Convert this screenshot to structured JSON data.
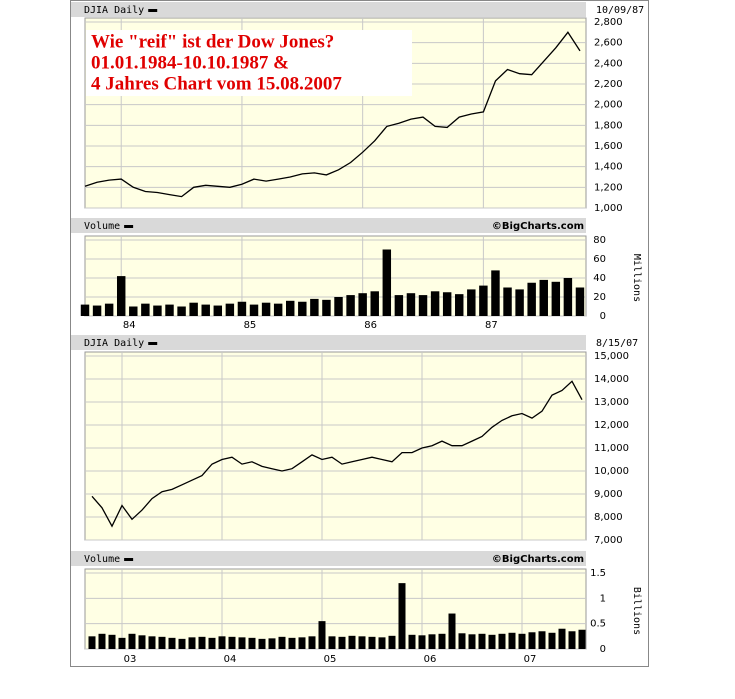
{
  "chart_data": [
    {
      "type": "line",
      "title": "DJIA Daily",
      "date_label": "10/09/87",
      "annotations": [
        "Wie \"reif\" ist der Dow Jones?",
        "01.01.1984-10.10.1987  &",
        "4 Jahres Chart vom 15.08.2007"
      ],
      "x": [
        1983.7,
        1983.8,
        1983.9,
        1984.0,
        1984.1,
        1984.2,
        1984.3,
        1984.4,
        1984.5,
        1984.6,
        1984.7,
        1984.8,
        1984.9,
        1985.0,
        1985.1,
        1985.2,
        1985.3,
        1985.4,
        1985.5,
        1985.6,
        1985.7,
        1985.8,
        1985.9,
        1986.0,
        1986.1,
        1986.2,
        1986.3,
        1986.4,
        1986.5,
        1986.6,
        1986.7,
        1986.8,
        1986.9,
        1987.0,
        1987.1,
        1987.2,
        1987.3,
        1987.4,
        1987.5,
        1987.6,
        1987.7,
        1987.8
      ],
      "values": [
        1210,
        1250,
        1270,
        1280,
        1200,
        1160,
        1150,
        1130,
        1110,
        1200,
        1220,
        1210,
        1200,
        1230,
        1280,
        1260,
        1280,
        1300,
        1330,
        1340,
        1320,
        1370,
        1440,
        1540,
        1650,
        1790,
        1820,
        1860,
        1880,
        1790,
        1780,
        1880,
        1910,
        1930,
        2230,
        2340,
        2300,
        2290,
        2420,
        2550,
        2700,
        2520
      ],
      "color": "#000000",
      "xlim": [
        1983.7,
        1987.85
      ],
      "xticks": [
        1984,
        1985,
        1986,
        1987
      ],
      "ylim": [
        1000,
        2800
      ],
      "yticks": [
        {
          "value": 1000,
          "label": "1,000"
        },
        {
          "value": 1200,
          "label": "1,200"
        },
        {
          "value": 1400,
          "label": "1,400"
        },
        {
          "value": 1600,
          "label": "1,600"
        },
        {
          "value": 1800,
          "label": "1,800"
        },
        {
          "value": 2000,
          "label": "2,000"
        },
        {
          "value": 2200,
          "label": "2,200"
        },
        {
          "value": 2400,
          "label": "2,400"
        },
        {
          "value": 2600,
          "label": "2,600"
        },
        {
          "value": 2800,
          "label": "2,800"
        }
      ],
      "grid": true
    },
    {
      "type": "bar",
      "title": "Volume",
      "source": "©BigCharts.com",
      "y_label": "Millions",
      "x": [
        1983.7,
        1983.8,
        1983.9,
        1984.0,
        1984.1,
        1984.2,
        1984.3,
        1984.4,
        1984.5,
        1984.6,
        1984.7,
        1984.8,
        1984.9,
        1985.0,
        1985.1,
        1985.2,
        1985.3,
        1985.4,
        1985.5,
        1985.6,
        1985.7,
        1985.8,
        1985.9,
        1986.0,
        1986.1,
        1986.2,
        1986.3,
        1986.4,
        1986.5,
        1986.6,
        1986.7,
        1986.8,
        1986.9,
        1987.0,
        1987.1,
        1987.2,
        1987.3,
        1987.4,
        1987.5,
        1987.6,
        1987.7,
        1987.8
      ],
      "values": [
        12,
        11,
        13,
        42,
        10,
        13,
        11,
        12,
        10,
        14,
        12,
        11,
        13,
        15,
        12,
        14,
        13,
        16,
        15,
        18,
        17,
        20,
        22,
        24,
        26,
        70,
        22,
        24,
        22,
        26,
        25,
        23,
        28,
        32,
        48,
        30,
        28,
        35,
        38,
        36,
        40,
        30
      ],
      "color": "#000000",
      "xlim": [
        1983.7,
        1987.85
      ],
      "xticks": [
        {
          "value": 1984,
          "label": "84"
        },
        {
          "value": 1985,
          "label": "85"
        },
        {
          "value": 1986,
          "label": "86"
        },
        {
          "value": 1987,
          "label": "87"
        }
      ],
      "ylim": [
        0,
        80
      ],
      "yticks": [
        0,
        20,
        40,
        60,
        80
      ],
      "grid": true
    },
    {
      "type": "line",
      "title": "DJIA Daily",
      "date_label": "8/15/07",
      "x": [
        2002.7,
        2002.8,
        2002.9,
        2003.0,
        2003.1,
        2003.2,
        2003.3,
        2003.4,
        2003.5,
        2003.6,
        2003.7,
        2003.8,
        2003.9,
        2004.0,
        2004.1,
        2004.2,
        2004.3,
        2004.4,
        2004.5,
        2004.6,
        2004.7,
        2004.8,
        2004.9,
        2005.0,
        2005.1,
        2005.2,
        2005.3,
        2005.4,
        2005.5,
        2005.6,
        2005.7,
        2005.8,
        2005.9,
        2006.0,
        2006.1,
        2006.2,
        2006.3,
        2006.4,
        2006.5,
        2006.6,
        2006.7,
        2006.8,
        2006.9,
        2007.0,
        2007.1,
        2007.2,
        2007.3,
        2007.4,
        2007.5,
        2007.6
      ],
      "values": [
        8900,
        8400,
        7600,
        8500,
        7900,
        8300,
        8800,
        9100,
        9200,
        9400,
        9600,
        9800,
        10300,
        10500,
        10600,
        10300,
        10400,
        10200,
        10100,
        10000,
        10100,
        10400,
        10700,
        10500,
        10600,
        10300,
        10400,
        10500,
        10600,
        10500,
        10400,
        10800,
        10800,
        11000,
        11100,
        11300,
        11100,
        11100,
        11300,
        11500,
        11900,
        12200,
        12400,
        12500,
        12300,
        12600,
        13300,
        13500,
        13900,
        13100
      ],
      "color": "#000000",
      "xlim": [
        2002.63,
        2007.64
      ],
      "xticks": [
        2003,
        2004,
        2005,
        2006,
        2007
      ],
      "ylim": [
        7000,
        15000
      ],
      "yticks": [
        {
          "value": 7000,
          "label": "7,000"
        },
        {
          "value": 8000,
          "label": "8,000"
        },
        {
          "value": 9000,
          "label": "9,000"
        },
        {
          "value": 10000,
          "label": "10,000"
        },
        {
          "value": 11000,
          "label": "11,000"
        },
        {
          "value": 12000,
          "label": "12,000"
        },
        {
          "value": 13000,
          "label": "13,000"
        },
        {
          "value": 14000,
          "label": "14,000"
        },
        {
          "value": 15000,
          "label": "15,000"
        }
      ],
      "grid": true
    },
    {
      "type": "bar",
      "title": "Volume",
      "source": "©BigCharts.com",
      "y_label": "Billions",
      "x": [
        2002.7,
        2002.8,
        2002.9,
        2003.0,
        2003.1,
        2003.2,
        2003.3,
        2003.4,
        2003.5,
        2003.6,
        2003.7,
        2003.8,
        2003.9,
        2004.0,
        2004.1,
        2004.2,
        2004.3,
        2004.4,
        2004.5,
        2004.6,
        2004.7,
        2004.8,
        2004.9,
        2005.0,
        2005.1,
        2005.2,
        2005.3,
        2005.4,
        2005.5,
        2005.6,
        2005.7,
        2005.8,
        2005.9,
        2006.0,
        2006.1,
        2006.2,
        2006.3,
        2006.4,
        2006.5,
        2006.6,
        2006.7,
        2006.8,
        2006.9,
        2007.0,
        2007.1,
        2007.2,
        2007.3,
        2007.4,
        2007.5,
        2007.6
      ],
      "values": [
        0.25,
        0.3,
        0.28,
        0.22,
        0.3,
        0.27,
        0.25,
        0.24,
        0.22,
        0.2,
        0.23,
        0.24,
        0.22,
        0.25,
        0.24,
        0.23,
        0.22,
        0.2,
        0.21,
        0.24,
        0.22,
        0.23,
        0.25,
        0.55,
        0.25,
        0.24,
        0.26,
        0.25,
        0.24,
        0.23,
        0.26,
        1.3,
        0.28,
        0.27,
        0.29,
        0.3,
        0.7,
        0.31,
        0.29,
        0.3,
        0.28,
        0.3,
        0.32,
        0.3,
        0.33,
        0.35,
        0.32,
        0.4,
        0.35,
        0.38
      ],
      "color": "#000000",
      "xlim": [
        2002.63,
        2007.64
      ],
      "xticks": [
        {
          "value": 2003,
          "label": "03"
        },
        {
          "value": 2004,
          "label": "04"
        },
        {
          "value": 2005,
          "label": "05"
        },
        {
          "value": 2006,
          "label": "06"
        },
        {
          "value": 2007,
          "label": "07"
        }
      ],
      "ylim": [
        0,
        1.5
      ],
      "yticks": [
        0,
        0.5,
        1,
        1.5
      ],
      "grid": true
    }
  ]
}
